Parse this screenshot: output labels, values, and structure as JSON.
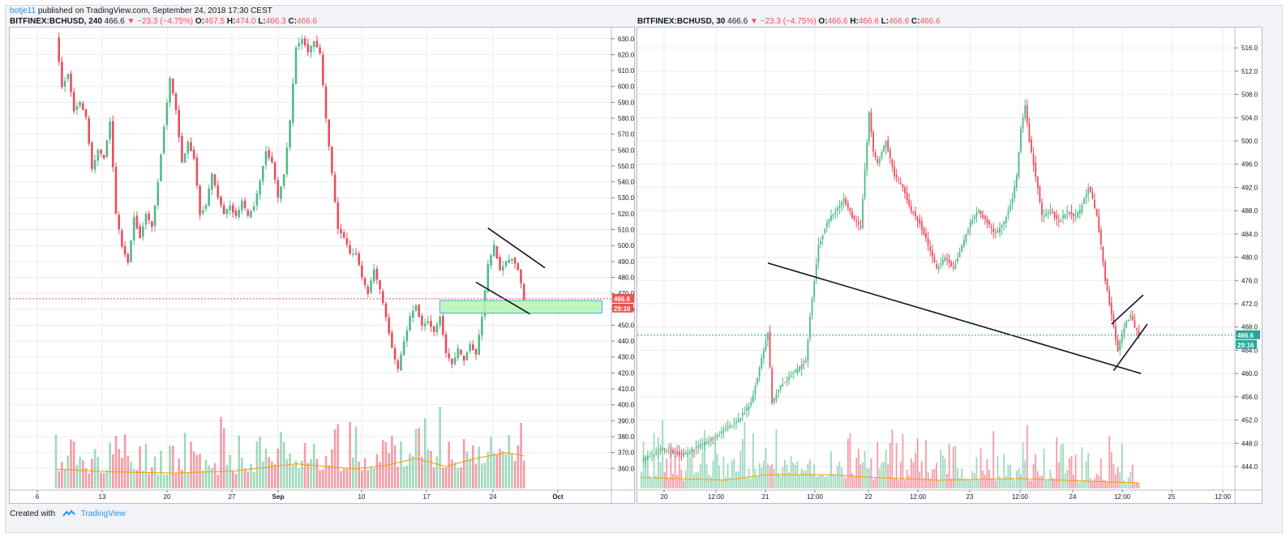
{
  "header": {
    "username": "botje11",
    "published_text": " published on TradingView.com, September 24, 2018 17:30 CEST"
  },
  "colors": {
    "up": "#26a69a",
    "up_body": "#53b987",
    "down": "#ef5350",
    "down_body": "#eb4d5c",
    "grid": "#e9ebef",
    "zone": "#b6f3b1",
    "zone_border": "#2196f3",
    "ma": "#ff9800"
  },
  "left": {
    "symbol_line": "BITFINEX:BCHUSD, 240",
    "last": "466.6",
    "change": "▼ −23.3 (−4.75%)",
    "o_label": "O:",
    "o": "467.5",
    "h_label": "H:",
    "h": "474.0",
    "l_label": "L:",
    "l": "466.3",
    "c_label": "C:",
    "c": "466.6",
    "price_tag": "466.6",
    "countdown_tag": "29:16"
  },
  "right": {
    "symbol_line": "BITFINEX:BCHUSD, 30",
    "last": "466.6",
    "change": "▼ −23.3 (−4.75%)",
    "o_label": "O:",
    "o": "466.6",
    "h_label": "H:",
    "h": "466.6",
    "l_label": "L:",
    "l": "466.6",
    "c_label": "C:",
    "c": "466.6",
    "price_tag": "466.6",
    "countdown_tag": "29:16"
  },
  "footer": {
    "created_with": "Created with",
    "brand": "TradingView"
  },
  "chart_data": [
    {
      "type": "candlestick",
      "interval": "240",
      "ylim": [
        352,
        637
      ],
      "y_ticks": [
        "360.0",
        "370.0",
        "380.0",
        "390.0",
        "400.0",
        "410.0",
        "420.0",
        "430.0",
        "440.0",
        "450.0",
        "460.0",
        "470.0",
        "480.0",
        "490.0",
        "500.0",
        "510.0",
        "520.0",
        "530.0",
        "540.0",
        "550.0",
        "560.0",
        "570.0",
        "580.0",
        "590.0",
        "600.0",
        "610.0",
        "620.0",
        "630.0"
      ],
      "x_ticks": [
        "6",
        "13",
        "20",
        "27",
        "Sep",
        "10",
        "17",
        "24",
        "Oct"
      ],
      "last_price": 466.6,
      "close_path": [
        [
          0,
          630
        ],
        [
          2,
          600
        ],
        [
          4,
          608
        ],
        [
          6,
          585
        ],
        [
          8,
          590
        ],
        [
          10,
          580
        ],
        [
          12,
          548
        ],
        [
          14,
          560
        ],
        [
          16,
          555
        ],
        [
          18,
          578
        ],
        [
          20,
          520
        ],
        [
          22,
          500
        ],
        [
          24,
          490
        ],
        [
          26,
          518
        ],
        [
          28,
          505
        ],
        [
          30,
          520
        ],
        [
          32,
          512
        ],
        [
          34,
          540
        ],
        [
          36,
          575
        ],
        [
          38,
          605
        ],
        [
          40,
          585
        ],
        [
          42,
          552
        ],
        [
          44,
          565
        ],
        [
          46,
          555
        ],
        [
          48,
          520
        ],
        [
          50,
          525
        ],
        [
          52,
          545
        ],
        [
          54,
          530
        ],
        [
          56,
          520
        ],
        [
          58,
          525
        ],
        [
          60,
          518
        ],
        [
          62,
          528
        ],
        [
          64,
          518
        ],
        [
          66,
          525
        ],
        [
          68,
          540
        ],
        [
          70,
          560
        ],
        [
          72,
          552
        ],
        [
          74,
          530
        ],
        [
          76,
          545
        ],
        [
          78,
          578
        ],
        [
          80,
          625
        ],
        [
          82,
          630
        ],
        [
          84,
          622
        ],
        [
          86,
          628
        ],
        [
          88,
          620
        ],
        [
          90,
          580
        ],
        [
          92,
          545
        ],
        [
          94,
          510
        ],
        [
          96,
          505
        ],
        [
          98,
          495
        ],
        [
          100,
          495
        ],
        [
          102,
          480
        ],
        [
          104,
          470
        ],
        [
          106,
          485
        ],
        [
          108,
          472
        ],
        [
          110,
          455
        ],
        [
          112,
          435
        ],
        [
          114,
          422
        ],
        [
          116,
          440
        ],
        [
          118,
          455
        ],
        [
          120,
          462
        ],
        [
          122,
          450
        ],
        [
          124,
          452
        ],
        [
          126,
          445
        ],
        [
          128,
          455
        ],
        [
          130,
          432
        ],
        [
          132,
          425
        ],
        [
          134,
          435
        ],
        [
          136,
          428
        ],
        [
          138,
          438
        ],
        [
          140,
          432
        ],
        [
          142,
          455
        ],
        [
          144,
          488
        ],
        [
          146,
          500
        ],
        [
          148,
          485
        ],
        [
          150,
          490
        ],
        [
          152,
          492
        ],
        [
          154,
          485
        ],
        [
          156,
          466.6
        ]
      ],
      "volume_path": [
        [
          0,
          0.35
        ],
        [
          20,
          0.3
        ],
        [
          40,
          0.28
        ],
        [
          60,
          0.32
        ],
        [
          80,
          0.45
        ],
        [
          90,
          0.4
        ],
        [
          100,
          0.36
        ],
        [
          110,
          0.42
        ],
        [
          120,
          0.55
        ],
        [
          130,
          0.4
        ],
        [
          140,
          0.55
        ],
        [
          150,
          0.65
        ],
        [
          156,
          0.6
        ]
      ],
      "drawings": {
        "support_zone": {
          "price_low": 457.5,
          "price_high": 465.5,
          "bar_from": 128,
          "bar_to": 182
        },
        "trendlines": [
          {
            "from": [
              144,
              511
            ],
            "to": [
              163,
              486
            ]
          },
          {
            "from": [
              140,
              477
            ],
            "to": [
              158,
              457
            ]
          }
        ]
      }
    },
    {
      "type": "candlestick",
      "interval": "30",
      "ylim": [
        441.5,
        519.5
      ],
      "y_ticks": [
        "444.0",
        "448.0",
        "452.0",
        "456.0",
        "460.0",
        "464.0",
        "468.0",
        "472.0",
        "476.0",
        "480.0",
        "484.0",
        "488.0",
        "492.0",
        "496.0",
        "500.0",
        "504.0",
        "508.0",
        "512.0",
        "516.0"
      ],
      "x_ticks": [
        "20",
        "12:00",
        "21",
        "12:00",
        "22",
        "12:00",
        "23",
        "12:00",
        "24",
        "12:00",
        "25",
        "12:00"
      ],
      "last_price": 466.6,
      "close_path": [
        [
          0,
          445
        ],
        [
          10,
          447
        ],
        [
          20,
          446
        ],
        [
          30,
          448
        ],
        [
          38,
          450
        ],
        [
          46,
          452
        ],
        [
          52,
          455
        ],
        [
          60,
          467
        ],
        [
          62,
          455
        ],
        [
          66,
          458
        ],
        [
          72,
          460
        ],
        [
          78,
          462
        ],
        [
          80,
          470
        ],
        [
          84,
          482
        ],
        [
          88,
          486
        ],
        [
          92,
          488
        ],
        [
          96,
          490
        ],
        [
          100,
          487
        ],
        [
          104,
          485
        ],
        [
          106,
          495
        ],
        [
          108,
          505
        ],
        [
          110,
          498
        ],
        [
          112,
          496
        ],
        [
          116,
          500
        ],
        [
          120,
          494
        ],
        [
          124,
          492
        ],
        [
          128,
          488
        ],
        [
          132,
          486
        ],
        [
          136,
          482
        ],
        [
          140,
          478
        ],
        [
          144,
          480
        ],
        [
          148,
          478
        ],
        [
          152,
          482
        ],
        [
          156,
          486
        ],
        [
          160,
          488
        ],
        [
          164,
          486
        ],
        [
          168,
          484
        ],
        [
          172,
          486
        ],
        [
          176,
          490
        ],
        [
          178,
          494
        ],
        [
          180,
          502
        ],
        [
          182,
          506
        ],
        [
          184,
          500
        ],
        [
          186,
          496
        ],
        [
          188,
          492
        ],
        [
          190,
          487
        ],
        [
          194,
          488
        ],
        [
          198,
          486
        ],
        [
          202,
          488
        ],
        [
          206,
          487
        ],
        [
          208,
          488
        ],
        [
          210,
          490
        ],
        [
          212,
          492
        ],
        [
          214,
          490
        ],
        [
          216,
          487
        ],
        [
          218,
          482
        ],
        [
          220,
          476
        ],
        [
          222,
          472
        ],
        [
          224,
          468
        ],
        [
          226,
          464
        ],
        [
          228,
          467
        ],
        [
          230,
          469
        ],
        [
          232,
          470
        ],
        [
          234,
          468
        ],
        [
          236,
          466.6
        ]
      ],
      "volume_path": [
        [
          0,
          0.2
        ],
        [
          40,
          0.15
        ],
        [
          60,
          0.25
        ],
        [
          90,
          0.25
        ],
        [
          110,
          0.2
        ],
        [
          140,
          0.15
        ],
        [
          180,
          0.18
        ],
        [
          220,
          0.12
        ],
        [
          236,
          0.1
        ]
      ],
      "drawings": {
        "trendlines": [
          {
            "from": [
              60,
              479
            ],
            "to": [
              237,
              460
            ]
          },
          {
            "from": [
              223,
              468.5
            ],
            "to": [
              238,
              473.5
            ]
          },
          {
            "from": [
              224,
              460.5
            ],
            "to": [
              240,
              468.5
            ]
          }
        ]
      }
    }
  ]
}
